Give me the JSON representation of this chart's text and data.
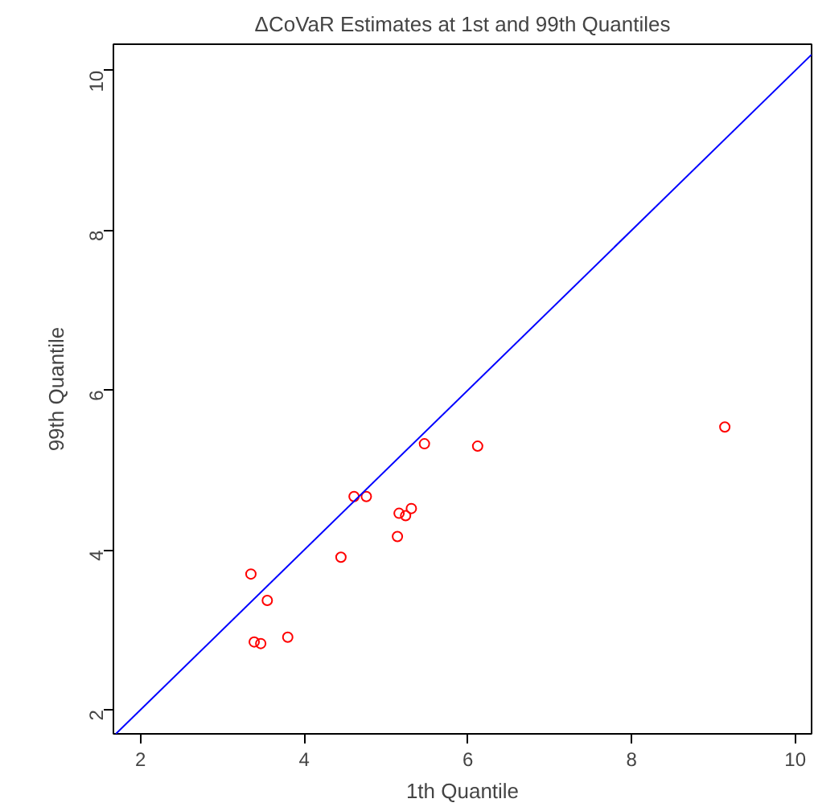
{
  "chart_data": {
    "type": "scatter",
    "title": "ΔCoVaR Estimates at 1st and 99th Quantiles",
    "xlabel": "1th Quantile",
    "ylabel": "99th Quantile",
    "xlim": [
      1.67,
      10.2
    ],
    "ylim": [
      1.7,
      10.33
    ],
    "xticks": [
      2,
      4,
      6,
      8,
      10
    ],
    "yticks": [
      2,
      4,
      6,
      8,
      10
    ],
    "grid": false,
    "marker": "circle",
    "series": [
      {
        "color": "#ff0000",
        "x": [
          3.35,
          3.55,
          3.39,
          3.47,
          3.8,
          4.45,
          4.61,
          4.76,
          5.14,
          5.16,
          5.24,
          5.31,
          5.47,
          6.12,
          9.14
        ],
        "values": [
          3.7,
          3.37,
          2.85,
          2.83,
          2.91,
          3.91,
          4.67,
          4.67,
          4.17,
          4.46,
          4.43,
          4.52,
          5.33,
          5.3,
          5.54
        ]
      },
      {
        "type": "line",
        "color": "#0000ff",
        "marker": "none",
        "x": [
          1.7,
          10.2
        ],
        "values": [
          1.7,
          10.2
        ]
      }
    ]
  }
}
